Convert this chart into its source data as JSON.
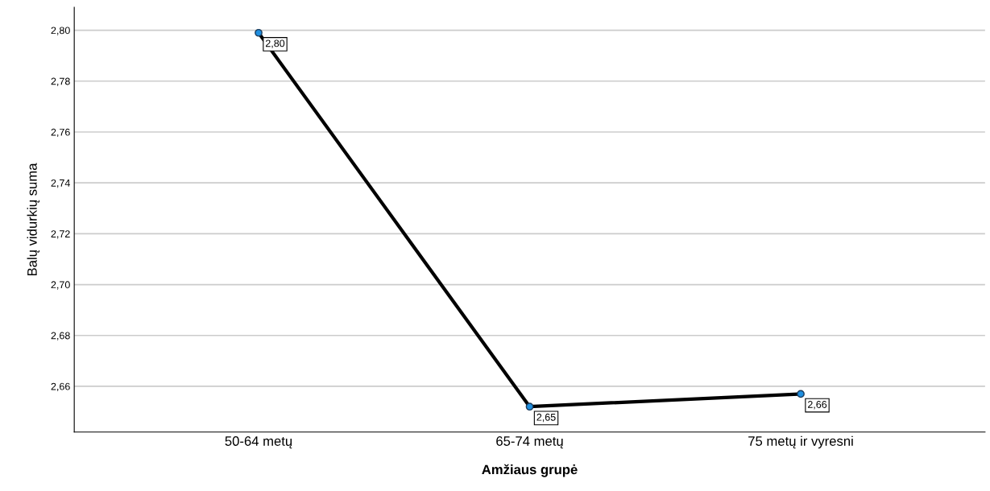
{
  "chart_data": {
    "type": "line",
    "xlabel": "Amžiaus grupė",
    "ylabel": "Balų vidurkių suma",
    "categories": [
      "50-64 metų",
      "65-74 metų",
      "75 metų ir vyresni"
    ],
    "series": [
      {
        "color": "#000000",
        "values": [
          2.799,
          2.652,
          2.657
        ],
        "value_labels": [
          "2,80",
          "2,65",
          "2,66"
        ]
      }
    ],
    "marker": "circle",
    "line_style": "solid",
    "grid": "y",
    "ylim": [
      2.642,
      2.809
    ],
    "yticks": [
      {
        "value": 2.66,
        "label": "2,66"
      },
      {
        "value": 2.68,
        "label": "2,68"
      },
      {
        "value": 2.7,
        "label": "2,70"
      },
      {
        "value": 2.72,
        "label": "2,72"
      },
      {
        "value": 2.74,
        "label": "2,74"
      },
      {
        "value": 2.76,
        "label": "2,76"
      },
      {
        "value": 2.78,
        "label": "2,78"
      },
      {
        "value": 2.8,
        "label": "2,80"
      }
    ]
  }
}
